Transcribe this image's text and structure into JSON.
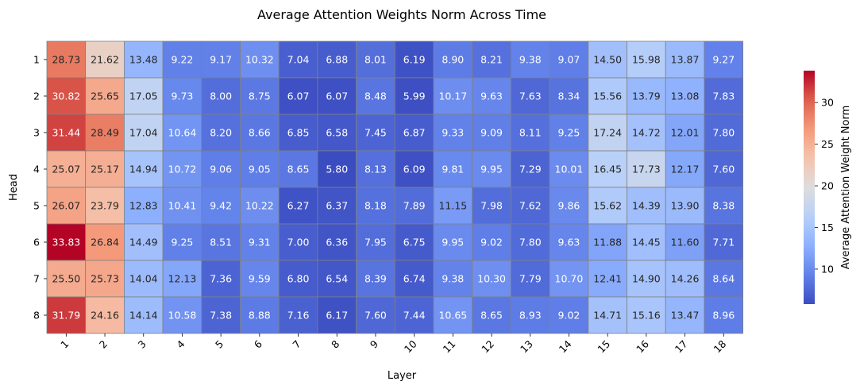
{
  "chart_data": {
    "type": "heatmap",
    "title": "Average Attention Weights Norm Across Time",
    "xlabel": "Layer",
    "ylabel": "Head",
    "x_categories": [
      "1",
      "2",
      "3",
      "4",
      "5",
      "6",
      "7",
      "8",
      "9",
      "10",
      "11",
      "12",
      "13",
      "14",
      "15",
      "16",
      "17",
      "18"
    ],
    "y_categories": [
      "1",
      "2",
      "3",
      "4",
      "5",
      "6",
      "7",
      "8"
    ],
    "values": [
      [
        28.73,
        21.62,
        13.48,
        9.22,
        9.17,
        10.32,
        7.04,
        6.88,
        8.01,
        6.19,
        8.9,
        8.21,
        9.38,
        9.07,
        14.5,
        15.98,
        13.87,
        9.27
      ],
      [
        30.82,
        25.65,
        17.05,
        9.73,
        8.0,
        8.75,
        6.07,
        6.07,
        8.48,
        5.99,
        10.17,
        9.63,
        7.63,
        8.34,
        15.56,
        13.79,
        13.08,
        7.83
      ],
      [
        31.44,
        28.49,
        17.04,
        10.64,
        8.2,
        8.66,
        6.85,
        6.58,
        7.45,
        6.87,
        9.33,
        9.09,
        8.11,
        9.25,
        17.24,
        14.72,
        12.01,
        7.8
      ],
      [
        25.07,
        25.17,
        14.94,
        10.72,
        9.06,
        9.05,
        8.65,
        5.8,
        8.13,
        6.09,
        9.81,
        9.95,
        7.29,
        10.01,
        16.45,
        17.73,
        12.17,
        7.6
      ],
      [
        26.07,
        23.79,
        12.83,
        10.41,
        9.42,
        10.22,
        6.27,
        6.37,
        8.18,
        7.89,
        11.15,
        7.98,
        7.62,
        9.86,
        15.62,
        14.39,
        13.9,
        8.38
      ],
      [
        33.83,
        26.84,
        14.49,
        9.25,
        8.51,
        9.31,
        7.0,
        6.36,
        7.95,
        6.75,
        9.95,
        9.02,
        7.8,
        9.63,
        11.88,
        14.45,
        11.6,
        7.71
      ],
      [
        25.5,
        25.73,
        14.04,
        12.13,
        7.36,
        9.59,
        6.8,
        6.54,
        8.39,
        6.74,
        9.38,
        10.3,
        7.79,
        10.7,
        12.41,
        14.9,
        14.26,
        8.64
      ],
      [
        31.79,
        24.16,
        14.14,
        10.58,
        7.38,
        8.88,
        7.16,
        6.17,
        7.6,
        7.44,
        10.65,
        8.65,
        8.93,
        9.02,
        14.71,
        15.16,
        13.47,
        8.96
      ]
    ],
    "value_format": "2 decimals",
    "colormap": "coolwarm",
    "colorbar": {
      "label": "Average Attention Weight Norm",
      "range": [
        5.8,
        33.83
      ],
      "ticks": [
        10,
        15,
        20,
        25,
        30
      ]
    },
    "cell_border_color": "#808080",
    "grid": false
  }
}
